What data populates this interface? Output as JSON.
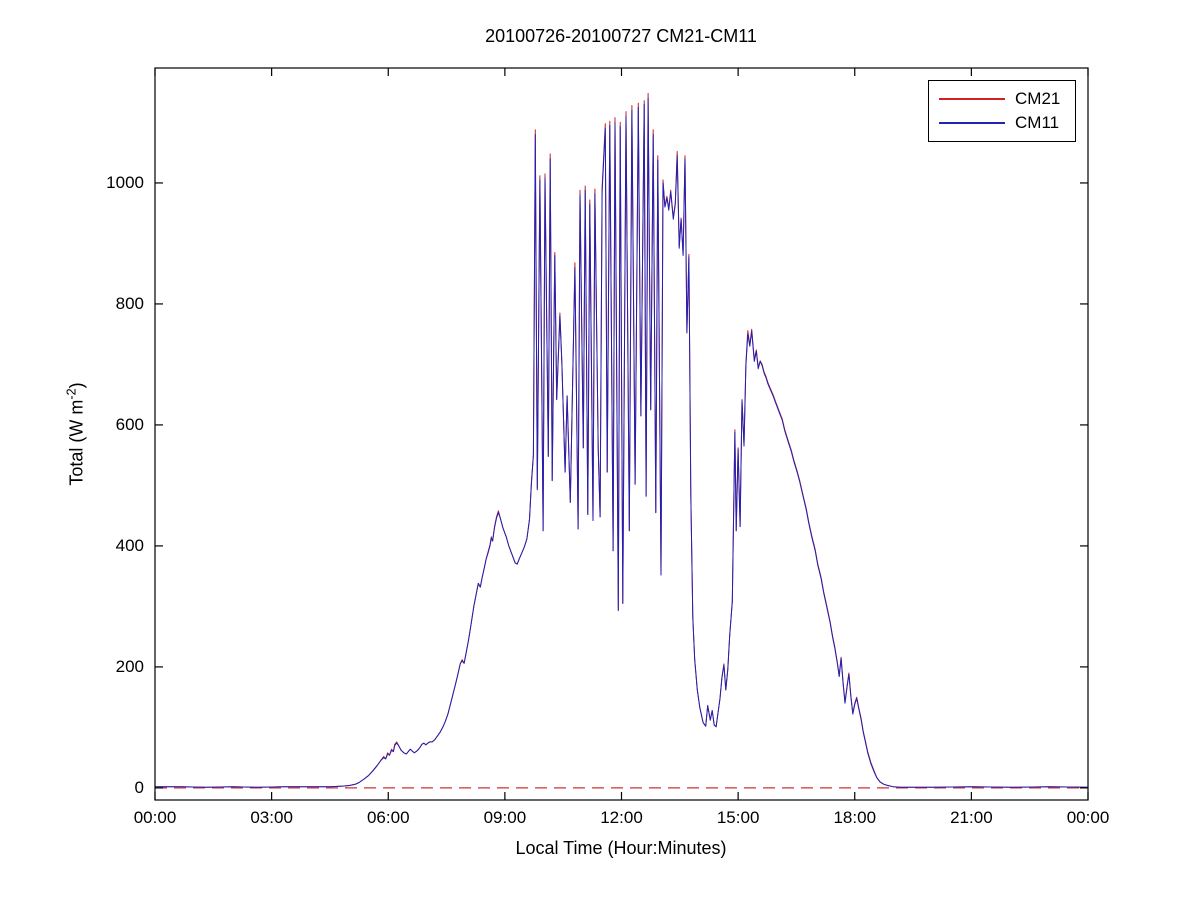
{
  "title": "20100726-20100727 CM21-CM11",
  "axes": {
    "xlabel": "Local Time (Hour:Minutes)",
    "ylabel_prefix": "Total (W m",
    "ylabel_sup": "-2",
    "ylabel_suffix": ")",
    "x_tick_labels": [
      "00:00",
      "03:00",
      "06:00",
      "09:00",
      "12:00",
      "15:00",
      "18:00",
      "21:00",
      "00:00"
    ],
    "y_tick_values": [
      0,
      200,
      400,
      600,
      800,
      1000
    ]
  },
  "legend": {
    "items": [
      {
        "label": "CM21",
        "color": "#cc2222"
      },
      {
        "label": "CM11",
        "color": "#2121b3"
      }
    ]
  },
  "chart_data": {
    "type": "line",
    "title": "20100726-20100727 CM21-CM11",
    "xlabel": "Local Time (Hour:Minutes)",
    "ylabel": "Total (W m^-2)",
    "x_unit": "minutes_since_midnight_local",
    "xlim_minutes": [
      0,
      1440
    ],
    "ylim": [
      -20,
      1190
    ],
    "x_tick_minutes": [
      0,
      180,
      360,
      540,
      720,
      900,
      1080,
      1260,
      1440
    ],
    "grid": false,
    "legend_position": "top-right-inside",
    "reference_line": {
      "y": 0,
      "style": "dashed",
      "color": "#cc3333"
    },
    "series": [
      {
        "name": "CM21",
        "color": "#cc2222",
        "style": "solid",
        "point_index": 1
      },
      {
        "name": "CM11",
        "color": "#2121b3",
        "style": "solid",
        "point_index": 2
      }
    ],
    "points_format": "[minutes, CM21_Wm2, CM11_Wm2]",
    "points": [
      [
        0,
        2,
        2
      ],
      [
        40,
        2,
        2
      ],
      [
        80,
        1,
        1
      ],
      [
        120,
        2,
        2
      ],
      [
        160,
        1,
        1
      ],
      [
        200,
        2,
        2
      ],
      [
        240,
        2,
        2
      ],
      [
        270,
        2,
        2
      ],
      [
        290,
        3,
        3
      ],
      [
        300,
        4,
        4
      ],
      [
        309,
        6,
        6
      ],
      [
        315,
        9,
        9
      ],
      [
        322,
        14,
        14
      ],
      [
        329,
        20,
        20
      ],
      [
        336,
        28,
        28
      ],
      [
        343,
        37,
        37
      ],
      [
        349,
        46,
        46
      ],
      [
        353,
        52,
        50
      ],
      [
        356,
        48,
        48
      ],
      [
        359,
        58,
        56
      ],
      [
        362,
        54,
        54
      ],
      [
        365,
        64,
        62
      ],
      [
        368,
        60,
        60
      ],
      [
        370,
        72,
        70
      ],
      [
        373,
        76,
        74
      ],
      [
        376,
        70,
        70
      ],
      [
        380,
        62,
        62
      ],
      [
        384,
        58,
        58
      ],
      [
        388,
        56,
        56
      ],
      [
        391,
        60,
        60
      ],
      [
        394,
        64,
        64
      ],
      [
        397,
        61,
        61
      ],
      [
        400,
        58,
        58
      ],
      [
        403,
        60,
        60
      ],
      [
        406,
        63,
        63
      ],
      [
        409,
        67,
        67
      ],
      [
        412,
        72,
        72
      ],
      [
        415,
        74,
        74
      ],
      [
        418,
        71,
        71
      ],
      [
        421,
        74,
        74
      ],
      [
        424,
        76,
        76
      ],
      [
        428,
        76,
        76
      ],
      [
        432,
        80,
        80
      ],
      [
        436,
        86,
        86
      ],
      [
        440,
        92,
        92
      ],
      [
        444,
        100,
        100
      ],
      [
        448,
        110,
        110
      ],
      [
        452,
        122,
        122
      ],
      [
        456,
        138,
        138
      ],
      [
        460,
        155,
        155
      ],
      [
        464,
        172,
        172
      ],
      [
        468,
        190,
        190
      ],
      [
        471,
        205,
        205
      ],
      [
        474,
        212,
        210
      ],
      [
        477,
        206,
        206
      ],
      [
        480,
        222,
        222
      ],
      [
        484,
        245,
        245
      ],
      [
        488,
        272,
        272
      ],
      [
        492,
        300,
        300
      ],
      [
        496,
        322,
        322
      ],
      [
        499,
        338,
        338
      ],
      [
        502,
        332,
        332
      ],
      [
        505,
        348,
        348
      ],
      [
        508,
        362,
        362
      ],
      [
        511,
        378,
        378
      ],
      [
        514,
        390,
        388
      ],
      [
        517,
        402,
        400
      ],
      [
        519,
        415,
        413
      ],
      [
        521,
        408,
        408
      ],
      [
        524,
        432,
        430
      ],
      [
        527,
        448,
        446
      ],
      [
        530,
        458,
        455
      ],
      [
        533,
        446,
        446
      ],
      [
        537,
        430,
        430
      ],
      [
        542,
        415,
        415
      ],
      [
        546,
        400,
        400
      ],
      [
        551,
        386,
        386
      ],
      [
        556,
        372,
        372
      ],
      [
        559,
        370,
        370
      ],
      [
        562,
        378,
        378
      ],
      [
        566,
        388,
        388
      ],
      [
        570,
        398,
        398
      ],
      [
        574,
        412,
        412
      ],
      [
        578,
        445,
        443
      ],
      [
        581,
        505,
        503
      ],
      [
        584,
        552,
        550
      ],
      [
        587,
        1088,
        1080
      ],
      [
        590,
        495,
        493
      ],
      [
        594,
        1012,
        1005
      ],
      [
        599,
        425,
        425
      ],
      [
        602,
        1015,
        1008
      ],
      [
        607,
        548,
        548
      ],
      [
        610,
        1048,
        1040
      ],
      [
        613,
        508,
        508
      ],
      [
        617,
        885,
        880
      ],
      [
        620,
        642,
        642
      ],
      [
        625,
        785,
        780
      ],
      [
        628,
        702,
        700
      ],
      [
        633,
        522,
        522
      ],
      [
        636,
        648,
        648
      ],
      [
        641,
        472,
        472
      ],
      [
        644,
        642,
        642
      ],
      [
        648,
        868,
        860
      ],
      [
        653,
        428,
        428
      ],
      [
        656,
        988,
        980
      ],
      [
        661,
        562,
        562
      ],
      [
        664,
        995,
        988
      ],
      [
        668,
        452,
        452
      ],
      [
        671,
        972,
        965
      ],
      [
        676,
        442,
        442
      ],
      [
        679,
        990,
        982
      ],
      [
        684,
        562,
        562
      ],
      [
        687,
        448,
        448
      ],
      [
        690,
        992,
        985
      ],
      [
        695,
        1098,
        1090
      ],
      [
        698,
        522,
        522
      ],
      [
        702,
        1102,
        1095
      ],
      [
        707,
        392,
        392
      ],
      [
        710,
        1108,
        1100
      ],
      [
        715,
        295,
        293
      ],
      [
        718,
        1100,
        1093
      ],
      [
        722,
        305,
        305
      ],
      [
        727,
        1118,
        1110
      ],
      [
        732,
        425,
        425
      ],
      [
        736,
        1128,
        1120
      ],
      [
        741,
        502,
        502
      ],
      [
        746,
        1132,
        1125
      ],
      [
        750,
        615,
        615
      ],
      [
        755,
        1136,
        1130
      ],
      [
        758,
        482,
        482
      ],
      [
        761,
        1148,
        1140
      ],
      [
        765,
        625,
        625
      ],
      [
        769,
        1088,
        1080
      ],
      [
        773,
        455,
        455
      ],
      [
        776,
        1045,
        1038
      ],
      [
        781,
        352,
        352
      ],
      [
        784,
        1005,
        1000
      ],
      [
        787,
        962,
        960
      ],
      [
        790,
        978,
        975
      ],
      [
        793,
        958,
        955
      ],
      [
        796,
        988,
        985
      ],
      [
        800,
        942,
        940
      ],
      [
        803,
        968,
        965
      ],
      [
        806,
        1052,
        1045
      ],
      [
        809,
        895,
        892
      ],
      [
        812,
        942,
        940
      ],
      [
        815,
        882,
        880
      ],
      [
        818,
        1045,
        1040
      ],
      [
        821,
        755,
        752
      ],
      [
        824,
        882,
        878
      ],
      [
        827,
        485,
        485
      ],
      [
        830,
        282,
        282
      ],
      [
        833,
        212,
        212
      ],
      [
        837,
        162,
        162
      ],
      [
        841,
        132,
        132
      ],
      [
        846,
        108,
        108
      ],
      [
        850,
        102,
        102
      ],
      [
        853,
        136,
        136
      ],
      [
        857,
        112,
        112
      ],
      [
        860,
        128,
        128
      ],
      [
        863,
        104,
        104
      ],
      [
        866,
        101,
        101
      ],
      [
        869,
        124,
        124
      ],
      [
        872,
        148,
        148
      ],
      [
        875,
        182,
        182
      ],
      [
        878,
        205,
        203
      ],
      [
        881,
        162,
        162
      ],
      [
        884,
        196,
        196
      ],
      [
        887,
        252,
        252
      ],
      [
        891,
        308,
        308
      ],
      [
        894,
        518,
        515
      ],
      [
        895,
        592,
        588
      ],
      [
        897,
        425,
        425
      ],
      [
        900,
        562,
        560
      ],
      [
        903,
        432,
        432
      ],
      [
        906,
        642,
        640
      ],
      [
        909,
        568,
        565
      ],
      [
        912,
        702,
        698
      ],
      [
        915,
        756,
        750
      ],
      [
        918,
        732,
        730
      ],
      [
        921,
        758,
        755
      ],
      [
        925,
        708,
        705
      ],
      [
        928,
        724,
        722
      ],
      [
        931,
        695,
        693
      ],
      [
        934,
        706,
        705
      ],
      [
        937,
        700,
        698
      ],
      [
        940,
        688,
        686
      ],
      [
        943,
        680,
        678
      ],
      [
        946,
        670,
        668
      ],
      [
        949,
        662,
        660
      ],
      [
        954,
        650,
        648
      ],
      [
        958,
        638,
        636
      ],
      [
        963,
        624,
        622
      ],
      [
        968,
        610,
        608
      ],
      [
        972,
        592,
        590
      ],
      [
        977,
        575,
        573
      ],
      [
        982,
        558,
        556
      ],
      [
        986,
        542,
        540
      ],
      [
        991,
        524,
        522
      ],
      [
        995,
        508,
        506
      ],
      [
        1000,
        485,
        483
      ],
      [
        1005,
        462,
        460
      ],
      [
        1009,
        440,
        438
      ],
      [
        1014,
        415,
        413
      ],
      [
        1019,
        394,
        392
      ],
      [
        1023,
        370,
        368
      ],
      [
        1028,
        348,
        346
      ],
      [
        1032,
        325,
        323
      ],
      [
        1037,
        300,
        298
      ],
      [
        1042,
        275,
        273
      ],
      [
        1046,
        250,
        248
      ],
      [
        1049,
        234,
        232
      ],
      [
        1053,
        208,
        206
      ],
      [
        1056,
        186,
        184
      ],
      [
        1059,
        216,
        214
      ],
      [
        1062,
        174,
        172
      ],
      [
        1065,
        142,
        140
      ],
      [
        1068,
        168,
        166
      ],
      [
        1071,
        190,
        188
      ],
      [
        1074,
        152,
        150
      ],
      [
        1077,
        124,
        122
      ],
      [
        1080,
        140,
        138
      ],
      [
        1083,
        150,
        148
      ],
      [
        1086,
        134,
        132
      ],
      [
        1090,
        114,
        112
      ],
      [
        1093,
        94,
        92
      ],
      [
        1096,
        80,
        78
      ],
      [
        1100,
        60,
        58
      ],
      [
        1105,
        42,
        40
      ],
      [
        1110,
        28,
        26
      ],
      [
        1114,
        17,
        17
      ],
      [
        1119,
        10,
        10
      ],
      [
        1125,
        6,
        6
      ],
      [
        1131,
        4,
        4
      ],
      [
        1139,
        2,
        2
      ],
      [
        1150,
        1,
        1
      ],
      [
        1200,
        1,
        1
      ],
      [
        1260,
        2,
        2
      ],
      [
        1320,
        1,
        1
      ],
      [
        1380,
        2,
        2
      ],
      [
        1440,
        1,
        1
      ]
    ]
  }
}
